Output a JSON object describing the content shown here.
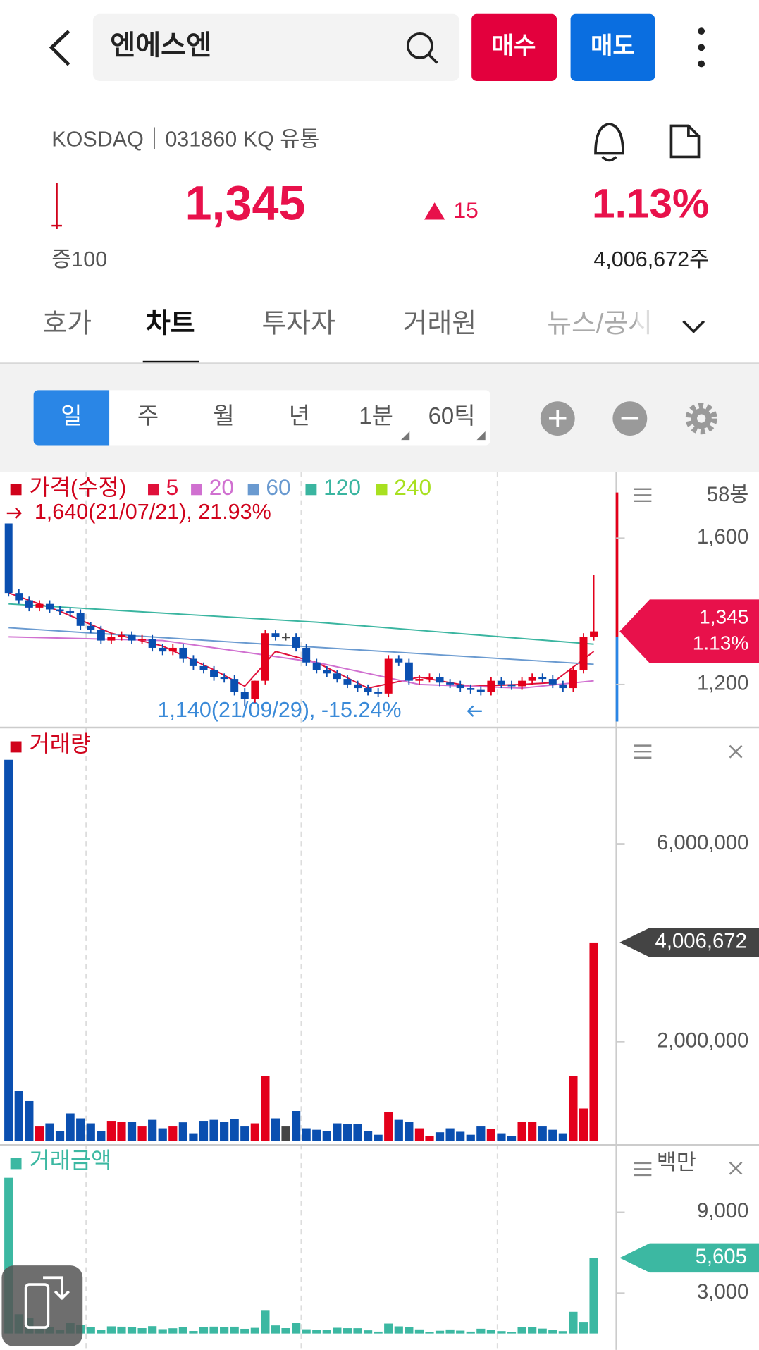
{
  "app": {
    "search": "엔에스엔",
    "buy": "매수",
    "sell": "매도",
    "market": "KOSDAQ｜031860 KQ 유통",
    "price": "1,345",
    "change": "15",
    "change_rate": "1.13%",
    "quote_unit": "증100",
    "volume": "4,006,672주",
    "tabs": [
      "호가",
      "차트",
      "투자자",
      "거래원",
      "뉴스/공시"
    ],
    "periods": [
      "일",
      "주",
      "월",
      "년",
      "1분",
      "60틱"
    ]
  },
  "chart_data": [
    {
      "type": "candlestick",
      "title": "가격(수정)",
      "bar_count_label": "58봉",
      "up_color": "#e3001b",
      "down_color": "#0a4fb0",
      "flat_color": "#444444",
      "open": [
        1640,
        1450,
        1430,
        1410,
        1420,
        1405,
        1400,
        1395,
        1360,
        1350,
        1320,
        1330,
        1335,
        1320,
        1325,
        1300,
        1290,
        1300,
        1270,
        1250,
        1240,
        1220,
        1215,
        1180,
        1160,
        1210,
        1340,
        1330,
        1330,
        1300,
        1260,
        1240,
        1230,
        1215,
        1200,
        1190,
        1180,
        1175,
        1270,
        1260,
        1210,
        1215,
        1220,
        1205,
        1200,
        1190,
        1185,
        1180,
        1210,
        1200,
        1195,
        1210,
        1220,
        1215,
        1200,
        1190,
        1240,
        1330
      ],
      "high": [
        1640,
        1460,
        1440,
        1430,
        1430,
        1415,
        1410,
        1405,
        1370,
        1360,
        1340,
        1345,
        1345,
        1335,
        1335,
        1310,
        1310,
        1310,
        1280,
        1260,
        1250,
        1230,
        1225,
        1190,
        1210,
        1350,
        1350,
        1340,
        1340,
        1310,
        1270,
        1250,
        1240,
        1225,
        1210,
        1200,
        1190,
        1280,
        1280,
        1270,
        1225,
        1230,
        1230,
        1215,
        1210,
        1200,
        1195,
        1220,
        1220,
        1210,
        1220,
        1230,
        1230,
        1225,
        1210,
        1250,
        1340,
        1500
      ],
      "low": [
        1440,
        1420,
        1400,
        1400,
        1395,
        1390,
        1385,
        1350,
        1340,
        1310,
        1310,
        1320,
        1310,
        1310,
        1290,
        1280,
        1280,
        1260,
        1240,
        1230,
        1210,
        1205,
        1170,
        1140,
        1150,
        1200,
        1320,
        1320,
        1290,
        1250,
        1230,
        1220,
        1205,
        1190,
        1180,
        1170,
        1165,
        1165,
        1250,
        1200,
        1200,
        1205,
        1195,
        1190,
        1180,
        1175,
        1170,
        1170,
        1190,
        1185,
        1185,
        1200,
        1205,
        1190,
        1180,
        1180,
        1230,
        1320
      ],
      "close": [
        1450,
        1430,
        1410,
        1420,
        1405,
        1400,
        1395,
        1360,
        1350,
        1320,
        1330,
        1335,
        1320,
        1325,
        1300,
        1290,
        1300,
        1270,
        1250,
        1240,
        1220,
        1215,
        1180,
        1160,
        1210,
        1340,
        1330,
        1330,
        1300,
        1260,
        1240,
        1230,
        1215,
        1200,
        1190,
        1180,
        1175,
        1270,
        1260,
        1210,
        1215,
        1220,
        1205,
        1200,
        1190,
        1185,
        1180,
        1210,
        1200,
        1195,
        1210,
        1220,
        1215,
        1200,
        1190,
        1240,
        1330,
        1345
      ],
      "ma_series": [
        {
          "name": "5",
          "color": "#e0103a",
          "x": [
            0,
            5,
            10,
            15,
            20,
            23,
            26,
            30,
            35,
            40,
            45,
            50,
            53,
            57
          ],
          "values": [
            1450,
            1400,
            1340,
            1305,
            1240,
            1195,
            1290,
            1260,
            1190,
            1220,
            1195,
            1200,
            1205,
            1290
          ]
        },
        {
          "name": "20",
          "color": "#d070d0",
          "x": [
            0,
            15,
            30,
            40,
            50,
            57
          ],
          "values": [
            1330,
            1320,
            1260,
            1200,
            1190,
            1210
          ]
        },
        {
          "name": "60",
          "color": "#6a9ad0",
          "x": [
            0,
            25,
            57
          ],
          "values": [
            1355,
            1310,
            1255
          ]
        },
        {
          "name": "120",
          "color": "#3ab5a0",
          "x": [
            0,
            30,
            57
          ],
          "values": [
            1420,
            1370,
            1310
          ]
        },
        {
          "name": "240",
          "color": "#a8e020"
        }
      ],
      "high_note": {
        "value": 1640,
        "label": "1,640(21/07/21), 21.93%"
      },
      "low_note": {
        "value": 1140,
        "label": "1,140(21/09/29), -15.24%"
      },
      "last": {
        "value": 1345,
        "label": "1,345",
        "change": 1.13,
        "change_label": "1.13%"
      },
      "ylim": [
        1094,
        1781
      ],
      "yticks": [
        {
          "value": 1600,
          "label": "1,600"
        },
        {
          "value": 1200,
          "label": "1,200"
        }
      ]
    },
    {
      "type": "bar",
      "title": "거래량",
      "title_color": "#d0021b",
      "values": [
        7700000,
        1000000,
        800000,
        300000,
        350000,
        200000,
        550000,
        450000,
        350000,
        200000,
        400000,
        380000,
        380000,
        300000,
        420000,
        250000,
        300000,
        370000,
        150000,
        400000,
        420000,
        380000,
        430000,
        300000,
        350000,
        1300000,
        450000,
        300000,
        600000,
        250000,
        220000,
        200000,
        350000,
        330000,
        330000,
        200000,
        120000,
        580000,
        420000,
        380000,
        250000,
        100000,
        170000,
        250000,
        180000,
        120000,
        300000,
        230000,
        150000,
        100000,
        380000,
        380000,
        300000,
        220000,
        150000,
        1300000,
        650000,
        4006672
      ],
      "last": {
        "value": 4006672,
        "label": "4,006,672"
      },
      "last_color": "#444444",
      "ylim": [
        0,
        8300000
      ],
      "yticks": [
        {
          "value": 6000000,
          "label": "6,000,000"
        },
        {
          "value": 2000000,
          "label": "2,000,000"
        }
      ]
    },
    {
      "type": "bar",
      "title": "거래금액",
      "unit": "백만",
      "color": "#3cb8a2",
      "title_color": "#3cb8a2",
      "values": [
        11550,
        1430,
        1128,
        426,
        492,
        280,
        767,
        612,
        473,
        264,
        532,
        507,
        502,
        398,
        546,
        323,
        390,
        470,
        188,
        496,
        512,
        462,
        507,
        348,
        420,
        1742,
        599,
        399,
        780,
        315,
        273,
        246,
        425,
        396,
        393,
        236,
        141,
        737,
        529,
        460,
        304,
        122,
        205,
        300,
        214,
        142,
        354,
        278,
        180,
        120,
        460,
        464,
        365,
        264,
        179,
        1612,
        865,
        5605
      ],
      "last": {
        "value": 5605,
        "label": "5,605"
      },
      "last_color": "#3cb8a2",
      "ylim": [
        0,
        13660
      ],
      "yticks": [
        {
          "value": 9000,
          "label": "9,000"
        },
        {
          "value": 3000,
          "label": "3,000"
        }
      ]
    }
  ]
}
